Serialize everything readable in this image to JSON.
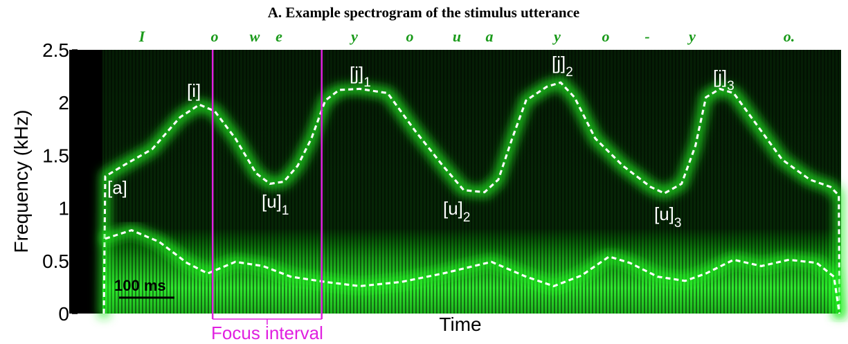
{
  "chart_data": {
    "type": "spectrogram",
    "title": "A. Example spectrogram of the stimulus utterance",
    "ylabel": "Frequency (kHz)",
    "xlabel": "Time",
    "ylim": [
      0,
      2.5
    ],
    "yticks": [
      0,
      0.5,
      1,
      1.5,
      2,
      2.5
    ],
    "xlim": [
      0,
      1334
    ],
    "words": [
      "I",
      "o",
      "w",
      "e",
      "y",
      "o",
      "u",
      "a",
      "y",
      "o",
      "-",
      "y",
      "o."
    ],
    "series": [
      {
        "color": "#ffffff",
        "x": [
          2.5,
          5,
          40,
          90,
          140,
          175,
          202.5,
          240,
          277.5,
          302.5,
          327.5,
          352.5,
          377.5,
          402.5,
          427.5,
          465,
          515,
          565,
          615,
          652.5,
          690,
          715,
          740,
          765,
          802.5,
          827.5,
          852.5,
          890,
          940,
          990,
          1015,
          1046,
          1071,
          1090,
          1115,
          1140,
          1177.5,
          1227.5,
          1277.5,
          1315,
          1330,
          1331
        ],
        "values": [
          0,
          1.3,
          1.41,
          1.56,
          1.86,
          1.98,
          1.92,
          1.66,
          1.33,
          1.23,
          1.25,
          1.4,
          1.66,
          2.02,
          2.12,
          2.13,
          2.09,
          1.73,
          1.4,
          1.17,
          1.15,
          1.27,
          1.66,
          2.02,
          2.15,
          2.19,
          2.05,
          1.66,
          1.4,
          1.2,
          1.14,
          1.23,
          1.59,
          2.05,
          2.13,
          2.09,
          1.82,
          1.46,
          1.27,
          1.2,
          1.12,
          0
        ]
      },
      {
        "color": "#ffffff",
        "x": [
          5,
          52.5,
          102.5,
          152.5,
          190,
          240,
          290,
          340,
          402.5,
          465,
          540,
          615,
          702.5,
          765,
          815,
          865,
          915,
          952.5,
          1002.5,
          1052.5,
          1090,
          1140,
          1190,
          1240,
          1290,
          1321,
          1331
        ],
        "values": [
          0.71,
          0.79,
          0.68,
          0.48,
          0.38,
          0.49,
          0.45,
          0.35,
          0.3,
          0.26,
          0.3,
          0.38,
          0.49,
          0.35,
          0.26,
          0.36,
          0.54,
          0.48,
          0.35,
          0.31,
          0.38,
          0.51,
          0.45,
          0.51,
          0.48,
          0.35,
          0
        ]
      }
    ],
    "annotations": [
      {
        "text": "[a]"
      },
      {
        "text": "[i]"
      },
      {
        "text": "[u]",
        "sub": "1"
      },
      {
        "text": "[j]",
        "sub": "1"
      },
      {
        "text": "[u]",
        "sub": "2"
      },
      {
        "text": "[j]",
        "sub": "2"
      },
      {
        "text": "[u]",
        "sub": "3"
      },
      {
        "text": "[j]",
        "sub": "3"
      }
    ],
    "focus_interval": {
      "label": "Focus interval",
      "x": [
        199,
        396
      ],
      "color": "#e020e0"
    },
    "scale_bar": {
      "label": "100 ms",
      "length": 100
    }
  }
}
